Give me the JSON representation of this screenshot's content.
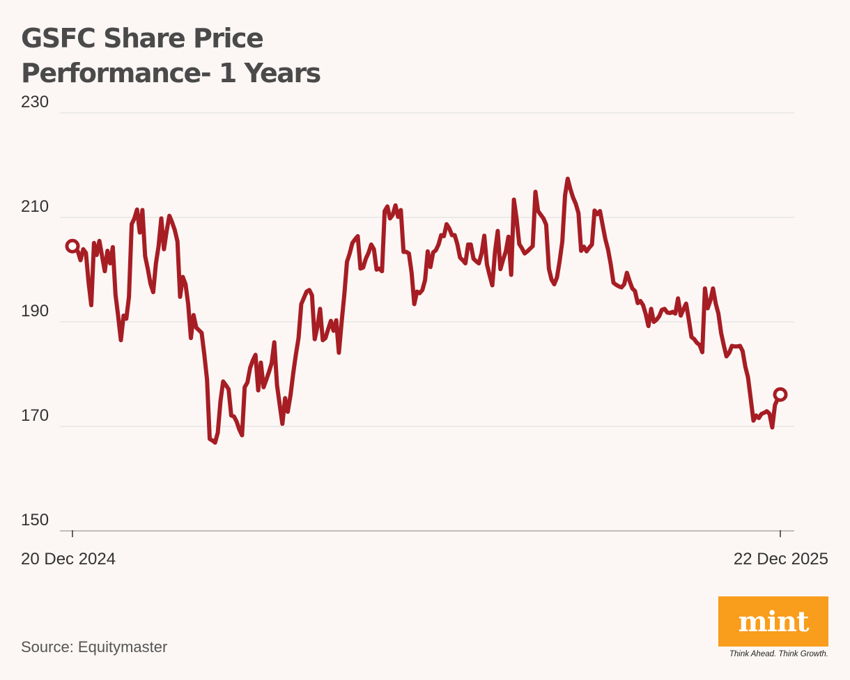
{
  "title_line1": "GSFC Share Price",
  "title_line2": "Performance- 1 Years",
  "source": "Source: Equitymaster",
  "logo_text": "mint",
  "tagline": "Think Ahead. Think Growth.",
  "colors": {
    "line": "#a61d24",
    "background": "#fcf7f5",
    "logo": "#f99d1c",
    "grid": "#dddddd"
  },
  "chart_data": {
    "type": "line",
    "title": "GSFC Share Price Performance- 1 Years",
    "xlabel": "",
    "ylabel": "",
    "ylim": [
      150,
      230
    ],
    "yticks": [
      150,
      170,
      190,
      210,
      230
    ],
    "xtick_labels": [
      "20 Dec 2024",
      "22 Dec 2025"
    ],
    "x_start": "20 Dec 2024",
    "x_end": "22 Dec 2025",
    "grid": "horizontal",
    "series": [
      {
        "values": [
          204.5,
          204.3,
          203.5,
          201.8,
          203.9,
          203.2,
          197.5,
          193.2,
          205.1,
          202.8,
          205.5,
          202.6,
          199.7,
          203.6,
          201.2,
          204.3,
          195.2,
          191.0,
          186.5,
          191.2,
          190.6,
          194.8,
          208.7,
          209.8,
          211.5,
          207.1,
          211.4,
          202.6,
          200.1,
          197.3,
          195.7,
          201.2,
          204.5,
          209.8,
          203.9,
          207.4,
          210.3,
          209.1,
          207.6,
          205.4,
          194.8,
          198.6,
          197.2,
          193.4,
          186.9,
          191.3,
          188.9,
          188.4,
          187.9,
          183.7,
          178.9,
          167.6,
          167.3,
          166.9,
          168.8,
          174.9,
          178.6,
          177.9,
          177.1,
          172.1,
          171.9,
          170.9,
          169.4,
          168.3,
          177.5,
          178.4,
          181.2,
          182.6,
          183.7,
          176.9,
          182.2,
          177.5,
          178.9,
          180.4,
          182.1,
          186.1,
          177.9,
          174.1,
          170.5,
          175.4,
          172.8,
          175.9,
          180.1,
          183.7,
          186.9,
          193.4,
          194.6,
          195.8,
          196.1,
          195.1,
          186.7,
          189.0,
          192.5,
          186.5,
          186.9,
          188.6,
          190.2,
          188.3,
          190.3,
          184.1,
          189.9,
          195.2,
          201.5,
          203.1,
          205.1,
          205.8,
          206.4,
          200.2,
          200.4,
          202.1,
          203.2,
          204.8,
          203.9,
          200.0,
          200.2,
          199.7,
          211.2,
          212.1,
          209.8,
          210.5,
          212.3,
          210.1,
          211.4,
          203.4,
          203.4,
          203.1,
          199.4,
          193.4,
          195.8,
          195.5,
          196.1,
          198.0,
          203.5,
          200.5,
          203.3,
          203.7,
          204.8,
          206.6,
          206.4,
          208.7,
          207.9,
          206.6,
          206.6,
          204.9,
          202.3,
          201.8,
          201.2,
          204.8,
          204.8,
          202.1,
          201.6,
          201.2,
          203.1,
          206.5,
          201.0,
          198.9,
          197.0,
          203.4,
          207.4,
          200.1,
          201.9,
          203.5,
          206.3,
          199.0,
          213.4,
          209.8,
          204.9,
          204.1,
          203.1,
          203.5,
          204.0,
          204.5,
          214.9,
          211.2,
          210.5,
          209.8,
          208.6,
          200.2,
          198.1,
          197.2,
          198.5,
          201.6,
          205.4,
          214.2,
          217.4,
          215.4,
          213.8,
          212.6,
          210.8,
          203.6,
          204.4,
          203.5,
          204.2,
          204.8,
          211.3,
          210.6,
          211.2,
          208.5,
          205.8,
          203.8,
          201.0,
          197.5,
          197.1,
          196.8,
          196.6,
          197.2,
          199.4,
          197.8,
          196.4,
          195.9,
          193.6,
          194.0,
          193.2,
          191.5,
          189.2,
          192.5,
          190.0,
          190.4,
          191.1,
          192.3,
          192.5,
          191.8,
          191.7,
          191.9,
          191.6,
          194.5,
          191.2,
          192.4,
          193.5,
          190.4,
          187.1,
          186.7,
          186.0,
          185.6,
          184.2,
          196.4,
          192.6,
          194.1,
          196.4,
          193.5,
          191.6,
          187.9,
          185.5,
          183.4,
          184.1,
          185.4,
          185.3,
          185.3,
          185.4,
          184.4,
          181.4,
          179.4,
          175.3,
          171.1,
          172.1,
          171.6,
          172.4,
          172.6,
          172.9,
          172.4,
          169.8,
          174.1,
          175.2,
          176.1
        ]
      }
    ]
  }
}
